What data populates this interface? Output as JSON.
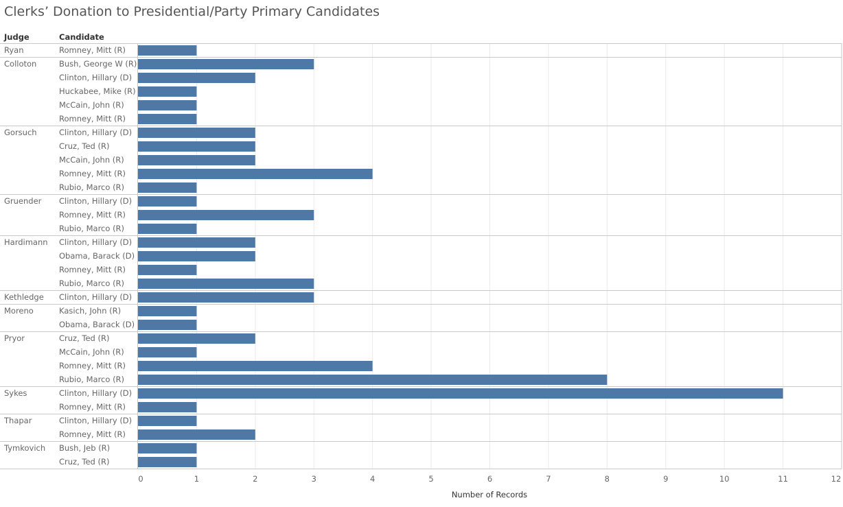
{
  "title": "Clerks’ Donation to Presidential/Party Primary Candidates",
  "headers": {
    "judge": "Judge",
    "candidate": "Candidate"
  },
  "colors": {
    "bar": "#4e79a7",
    "grid": "#ebebeb",
    "rule": "#c8c8c8",
    "text": "#666666"
  },
  "chart_data": {
    "type": "bar",
    "orientation": "horizontal",
    "title": "Clerks’ Donation to Presidential/Party Primary Candidates",
    "xlabel": "Number of Records",
    "ylabel": "",
    "xlim": [
      0,
      12
    ],
    "xticks": [
      0,
      1,
      2,
      3,
      4,
      5,
      6,
      7,
      8,
      9,
      10,
      11,
      12
    ],
    "groups": [
      {
        "judge": "Ryan",
        "rows": [
          {
            "candidate": "Romney, Mitt (R)",
            "value": 1
          }
        ]
      },
      {
        "judge": "Colloton",
        "rows": [
          {
            "candidate": "Bush, George W (R)",
            "value": 3
          },
          {
            "candidate": "Clinton, Hillary (D)",
            "value": 2
          },
          {
            "candidate": "Huckabee, Mike (R)",
            "value": 1
          },
          {
            "candidate": "McCain, John (R)",
            "value": 1
          },
          {
            "candidate": "Romney, Mitt (R)",
            "value": 1
          }
        ]
      },
      {
        "judge": "Gorsuch",
        "rows": [
          {
            "candidate": "Clinton, Hillary (D)",
            "value": 2
          },
          {
            "candidate": "Cruz, Ted (R)",
            "value": 2
          },
          {
            "candidate": "McCain, John (R)",
            "value": 2
          },
          {
            "candidate": "Romney, Mitt (R)",
            "value": 4
          },
          {
            "candidate": "Rubio, Marco (R)",
            "value": 1
          }
        ]
      },
      {
        "judge": "Gruender",
        "rows": [
          {
            "candidate": "Clinton, Hillary (D)",
            "value": 1
          },
          {
            "candidate": "Romney, Mitt (R)",
            "value": 3
          },
          {
            "candidate": "Rubio, Marco (R)",
            "value": 1
          }
        ]
      },
      {
        "judge": "Hardimann",
        "rows": [
          {
            "candidate": "Clinton, Hillary (D)",
            "value": 2
          },
          {
            "candidate": "Obama, Barack (D)",
            "value": 2
          },
          {
            "candidate": "Romney, Mitt (R)",
            "value": 1
          },
          {
            "candidate": "Rubio, Marco (R)",
            "value": 3
          }
        ]
      },
      {
        "judge": "Kethledge",
        "rows": [
          {
            "candidate": "Clinton, Hillary (D)",
            "value": 3
          }
        ]
      },
      {
        "judge": "Moreno",
        "rows": [
          {
            "candidate": "Kasich, John (R)",
            "value": 1
          },
          {
            "candidate": "Obama, Barack (D)",
            "value": 1
          }
        ]
      },
      {
        "judge": "Pryor",
        "rows": [
          {
            "candidate": "Cruz, Ted (R)",
            "value": 2
          },
          {
            "candidate": "McCain, John (R)",
            "value": 1
          },
          {
            "candidate": "Romney, Mitt (R)",
            "value": 4
          },
          {
            "candidate": "Rubio, Marco (R)",
            "value": 8
          }
        ]
      },
      {
        "judge": "Sykes",
        "rows": [
          {
            "candidate": "Clinton, Hillary (D)",
            "value": 11
          },
          {
            "candidate": "Romney, Mitt (R)",
            "value": 1
          }
        ]
      },
      {
        "judge": "Thapar",
        "rows": [
          {
            "candidate": "Clinton, Hillary (D)",
            "value": 1
          },
          {
            "candidate": "Romney, Mitt (R)",
            "value": 2
          }
        ]
      },
      {
        "judge": "Tymkovich",
        "rows": [
          {
            "candidate": "Bush, Jeb (R)",
            "value": 1
          },
          {
            "candidate": "Cruz, Ted (R)",
            "value": 1
          }
        ]
      }
    ]
  }
}
